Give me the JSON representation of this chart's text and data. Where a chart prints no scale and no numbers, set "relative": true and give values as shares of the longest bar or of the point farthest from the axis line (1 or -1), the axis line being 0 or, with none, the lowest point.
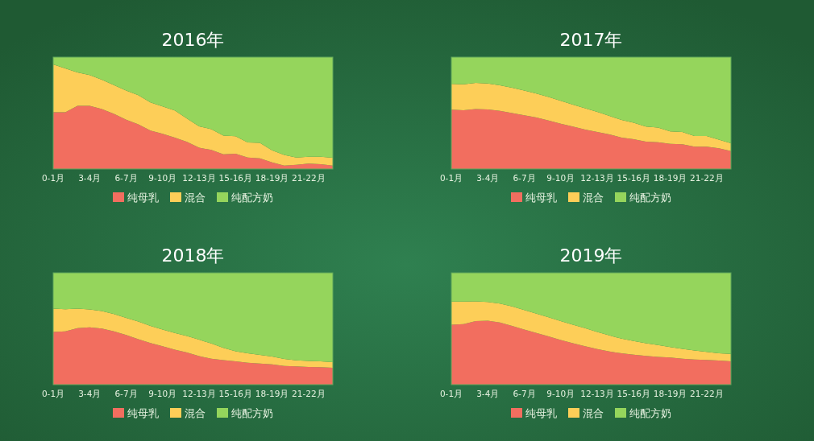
{
  "chart_data": [
    {
      "type": "area",
      "title": "2016年",
      "stacked": true,
      "relative": true,
      "legend": "bottom",
      "categories": [
        "0-1月",
        null,
        null,
        "3-4月",
        null,
        null,
        "6-7月",
        null,
        null,
        "9-10月",
        null,
        null,
        "12-13月",
        null,
        null,
        "15-16月",
        null,
        null,
        "18-19月",
        null,
        null,
        "21-22月",
        null,
        null
      ],
      "series": [
        {
          "name": "纯母乳",
          "color": "#f26e5f",
          "values": [
            0.507,
            0.507,
            0.565,
            0.565,
            0.536,
            0.493,
            0.44,
            0.4,
            0.343,
            0.314,
            0.281,
            0.243,
            0.19,
            0.171,
            0.131,
            0.136,
            0.102,
            0.095,
            0.06,
            0.031,
            0.038,
            0.048,
            0.043,
            0.031
          ]
        },
        {
          "name": "混合",
          "color": "#fdce58",
          "values": [
            0.429,
            0.393,
            0.299,
            0.275,
            0.262,
            0.257,
            0.262,
            0.26,
            0.252,
            0.246,
            0.243,
            0.209,
            0.191,
            0.186,
            0.167,
            0.157,
            0.136,
            0.138,
            0.107,
            0.095,
            0.064,
            0.062,
            0.067,
            0.069
          ]
        },
        {
          "name": "纯配方奶",
          "color": "#95d55c",
          "values": [
            0.064,
            0.1,
            0.136,
            0.16,
            0.202,
            0.25,
            0.298,
            0.34,
            0.405,
            0.44,
            0.476,
            0.548,
            0.619,
            0.643,
            0.702,
            0.707,
            0.762,
            0.767,
            0.833,
            0.874,
            0.898,
            0.89,
            0.89,
            0.9
          ]
        }
      ]
    },
    {
      "type": "area",
      "title": "2017年",
      "stacked": true,
      "relative": true,
      "legend": "bottom",
      "categories": [
        "0-1月",
        null,
        null,
        "3-4月",
        null,
        null,
        "6-7月",
        null,
        null,
        "9-10月",
        null,
        null,
        "12-13月",
        null,
        null,
        "15-16月",
        null,
        null,
        "18-19月",
        null,
        null,
        "21-22月",
        null,
        null
      ],
      "series": [
        {
          "name": "纯母乳",
          "color": "#f26e5f",
          "values": [
            0.531,
            0.526,
            0.536,
            0.533,
            0.519,
            0.5,
            0.481,
            0.46,
            0.433,
            0.405,
            0.379,
            0.352,
            0.331,
            0.31,
            0.281,
            0.267,
            0.245,
            0.24,
            0.224,
            0.221,
            0.2,
            0.2,
            0.186,
            0.16
          ]
        },
        {
          "name": "混合",
          "color": "#fdce58",
          "values": [
            0.229,
            0.231,
            0.233,
            0.231,
            0.229,
            0.226,
            0.221,
            0.214,
            0.21,
            0.205,
            0.197,
            0.191,
            0.179,
            0.164,
            0.157,
            0.147,
            0.134,
            0.131,
            0.112,
            0.11,
            0.095,
            0.095,
            0.076,
            0.071
          ]
        },
        {
          "name": "纯配方奶",
          "color": "#95d55c",
          "values": [
            0.24,
            0.243,
            0.231,
            0.236,
            0.252,
            0.274,
            0.298,
            0.326,
            0.357,
            0.39,
            0.424,
            0.457,
            0.49,
            0.526,
            0.562,
            0.586,
            0.621,
            0.629,
            0.664,
            0.669,
            0.705,
            0.705,
            0.738,
            0.769
          ]
        }
      ]
    },
    {
      "type": "area",
      "title": "2018年",
      "stacked": true,
      "relative": true,
      "legend": "bottom",
      "categories": [
        "0-1月",
        null,
        null,
        "3-4月",
        null,
        null,
        "6-7月",
        null,
        null,
        "9-10月",
        null,
        null,
        "12-13月",
        null,
        null,
        "15-16月",
        null,
        null,
        "18-19月",
        null,
        null,
        "21-22月",
        null,
        null
      ],
      "series": [
        {
          "name": "纯母乳",
          "color": "#f26e5f",
          "values": [
            0.471,
            0.476,
            0.505,
            0.512,
            0.502,
            0.476,
            0.445,
            0.407,
            0.373,
            0.344,
            0.313,
            0.287,
            0.256,
            0.232,
            0.22,
            0.208,
            0.196,
            0.189,
            0.182,
            0.167,
            0.163,
            0.158,
            0.156,
            0.151
          ]
        },
        {
          "name": "混合",
          "color": "#fdce58",
          "values": [
            0.208,
            0.199,
            0.174,
            0.16,
            0.156,
            0.156,
            0.153,
            0.158,
            0.153,
            0.149,
            0.149,
            0.148,
            0.146,
            0.136,
            0.11,
            0.091,
            0.084,
            0.077,
            0.069,
            0.063,
            0.055,
            0.055,
            0.052,
            0.05
          ]
        },
        {
          "name": "纯配方奶",
          "color": "#95d55c",
          "values": [
            0.321,
            0.325,
            0.321,
            0.328,
            0.342,
            0.368,
            0.402,
            0.435,
            0.474,
            0.507,
            0.538,
            0.565,
            0.598,
            0.632,
            0.67,
            0.701,
            0.72,
            0.734,
            0.749,
            0.77,
            0.782,
            0.787,
            0.792,
            0.799
          ]
        }
      ]
    },
    {
      "type": "area",
      "title": "2019年",
      "stacked": true,
      "relative": true,
      "legend": "bottom",
      "categories": [
        "0-1月",
        null,
        null,
        "3-4月",
        null,
        null,
        "6-7月",
        null,
        null,
        "9-10月",
        null,
        null,
        "12-13月",
        null,
        null,
        "15-16月",
        null,
        null,
        "18-19月",
        null,
        null,
        "21-22月",
        null,
        null
      ],
      "series": [
        {
          "name": "纯母乳",
          "color": "#f26e5f",
          "values": [
            0.536,
            0.541,
            0.569,
            0.572,
            0.555,
            0.526,
            0.493,
            0.462,
            0.431,
            0.4,
            0.371,
            0.344,
            0.318,
            0.297,
            0.28,
            0.268,
            0.258,
            0.249,
            0.242,
            0.232,
            0.225,
            0.222,
            0.215,
            0.208
          ]
        },
        {
          "name": "混合",
          "color": "#fdce58",
          "values": [
            0.206,
            0.201,
            0.175,
            0.167,
            0.17,
            0.173,
            0.174,
            0.172,
            0.172,
            0.169,
            0.165,
            0.161,
            0.153,
            0.143,
            0.131,
            0.122,
            0.113,
            0.105,
            0.095,
            0.089,
            0.081,
            0.072,
            0.065,
            0.067
          ]
        },
        {
          "name": "纯配方奶",
          "color": "#95d55c",
          "values": [
            0.258,
            0.258,
            0.256,
            0.261,
            0.275,
            0.301,
            0.333,
            0.366,
            0.397,
            0.431,
            0.464,
            0.495,
            0.529,
            0.56,
            0.589,
            0.61,
            0.629,
            0.646,
            0.663,
            0.679,
            0.694,
            0.706,
            0.72,
            0.725
          ]
        }
      ]
    }
  ]
}
